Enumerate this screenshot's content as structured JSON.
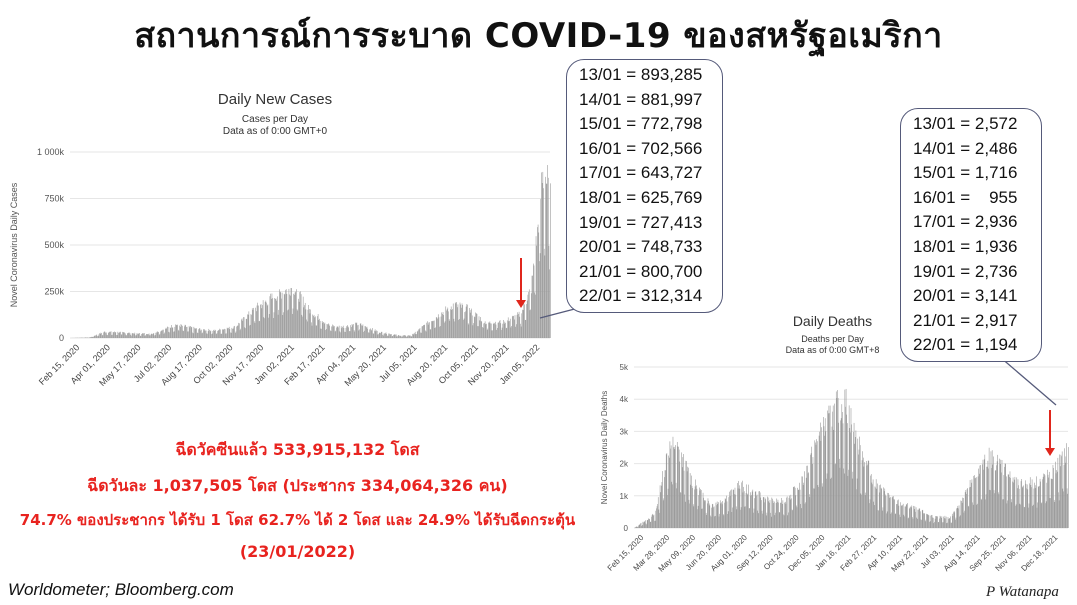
{
  "title": "สถานการณ์การระบาด COVID-19 ของสหรัฐอเมริกา",
  "colors": {
    "bar": "#9a9a9a",
    "arrow": "#e0261c",
    "stats": "#e8231f",
    "callout_border": "#555a7a"
  },
  "callout_cases": [
    "13/01 = 893,285",
    "14/01 = 881,997",
    "15/01 = 772,798",
    "16/01 = 702,566",
    "17/01 = 643,727",
    "18/01 = 625,769",
    "19/01 = 727,413",
    "20/01 = 748,733",
    "21/01 = 800,700",
    "22/01 = 312,314"
  ],
  "callout_deaths": [
    "13/01 = 2,572",
    "14/01 = 2,486",
    "15/01 = 1,716",
    "16/01 =    955",
    "17/01 = 2,936",
    "18/01 = 1,936",
    "19/01 = 2,736",
    "20/01 = 3,141",
    "21/01 = 2,917",
    "22/01 = 1,194"
  ],
  "stats": {
    "line1": "ฉีดวัคซีนแล้ว 533,915,132 โดส",
    "line2": "ฉีดวันละ 1,037,505 โดส (ประชากร 334,064,326 คน)",
    "line3": "74.7% ของประชากร ได้รับ 1 โดส 62.7% ได้ 2 โดส และ 24.9% ได้รับฉีดกระตุ้น",
    "line4": "(23/01/2022)"
  },
  "source": "Worldometer;  Bloomberg.com",
  "signature": "P Watanapa",
  "chart_data": [
    {
      "type": "bar",
      "title": "Daily New Cases",
      "subtitle": [
        "Cases per Day",
        "Data as of 0:00 GMT+0"
      ],
      "ylabel": "Novel Coronavirus Daily Cases",
      "ylim": [
        0,
        1000000
      ],
      "yticks": [
        0,
        250000,
        500000,
        750000,
        1000000
      ],
      "ytick_labels": [
        "0",
        "250k",
        "500k",
        "750k",
        "1 000k"
      ],
      "x_tick_labels": [
        "Feb 15, 2020",
        "Apr 01, 2020",
        "May 17, 2020",
        "Jul 02, 2020",
        "Aug 17, 2020",
        "Oct 02, 2020",
        "Nov 17, 2020",
        "Jan 02, 2021",
        "Feb 17, 2021",
        "Apr 04, 2021",
        "May 20, 2021",
        "Jul 05, 2021",
        "Aug 20, 2021",
        "Oct 05, 2021",
        "Nov 20, 2021",
        "Jan 05, 2022"
      ],
      "x_range": [
        "2020-02-15",
        "2022-01-22"
      ],
      "trend": [
        [
          "2020-02-15",
          0
        ],
        [
          "2020-03-15",
          3000
        ],
        [
          "2020-04-05",
          30000
        ],
        [
          "2020-04-25",
          29000
        ],
        [
          "2020-05-25",
          22000
        ],
        [
          "2020-06-15",
          22000
        ],
        [
          "2020-07-20",
          67000
        ],
        [
          "2020-08-20",
          45000
        ],
        [
          "2020-09-15",
          37000
        ],
        [
          "2020-10-15",
          55000
        ],
        [
          "2020-11-15",
          150000
        ],
        [
          "2020-12-15",
          215000
        ],
        [
          "2021-01-08",
          255000
        ],
        [
          "2021-02-01",
          140000
        ],
        [
          "2021-03-01",
          65000
        ],
        [
          "2021-03-20",
          55000
        ],
        [
          "2021-04-15",
          70000
        ],
        [
          "2021-05-15",
          30000
        ],
        [
          "2021-06-15",
          12000
        ],
        [
          "2021-07-01",
          13000
        ],
        [
          "2021-08-01",
          90000
        ],
        [
          "2021-09-01",
          165000
        ],
        [
          "2021-09-20",
          150000
        ],
        [
          "2021-10-20",
          75000
        ],
        [
          "2021-11-15",
          82000
        ],
        [
          "2021-12-10",
          120000
        ],
        [
          "2021-12-25",
          250000
        ],
        [
          "2022-01-03",
          520000
        ],
        [
          "2022-01-10",
          790000
        ],
        [
          "2022-01-14",
          820000
        ],
        [
          "2022-01-22",
          700000
        ]
      ],
      "annotation": "arrow"
    },
    {
      "type": "bar",
      "title": "Daily Deaths",
      "subtitle": [
        "Deaths per Day",
        "Data as of 0:00 GMT+8"
      ],
      "ylabel": "Novel Coronavirus Daily Deaths",
      "ylim": [
        0,
        5000
      ],
      "yticks": [
        0,
        1000,
        2000,
        3000,
        4000,
        5000
      ],
      "ytick_labels": [
        "0",
        "1k",
        "2k",
        "3k",
        "4k",
        "5k"
      ],
      "x_tick_labels": [
        "Feb 15, 2020",
        "Mar 28, 2020",
        "May 09, 2020",
        "Jun 20, 2020",
        "Aug 01, 2020",
        "Sep 12, 2020",
        "Oct 24, 2020",
        "Dec 05, 2020",
        "Jan 16, 2021",
        "Feb 27, 2021",
        "Apr 10, 2021",
        "May 22, 2021",
        "Jul 03, 2021",
        "Aug 14, 2021",
        "Sep 25, 2021",
        "Nov 06, 2021",
        "Dec 18, 2021"
      ],
      "x_range": [
        "2020-02-15",
        "2022-01-22"
      ],
      "trend": [
        [
          "2020-02-15",
          0
        ],
        [
          "2020-03-20",
          400
        ],
        [
          "2020-04-10",
          2200
        ],
        [
          "2020-04-20",
          2400
        ],
        [
          "2020-05-20",
          1300
        ],
        [
          "2020-06-20",
          650
        ],
        [
          "2020-07-10",
          800
        ],
        [
          "2020-08-05",
          1200
        ],
        [
          "2020-09-01",
          950
        ],
        [
          "2020-09-25",
          750
        ],
        [
          "2020-10-20",
          800
        ],
        [
          "2020-11-15",
          1300
        ],
        [
          "2020-12-10",
          2500
        ],
        [
          "2021-01-10",
          3400
        ],
        [
          "2021-01-25",
          3500
        ],
        [
          "2021-02-15",
          2300
        ],
        [
          "2021-03-15",
          1200
        ],
        [
          "2021-04-15",
          750
        ],
        [
          "2021-05-15",
          550
        ],
        [
          "2021-06-20",
          300
        ],
        [
          "2021-07-15",
          300
        ],
        [
          "2021-08-15",
          1200
        ],
        [
          "2021-09-15",
          2000
        ],
        [
          "2021-10-05",
          1800
        ],
        [
          "2021-11-01",
          1200
        ],
        [
          "2021-12-01",
          1300
        ],
        [
          "2021-12-25",
          1500
        ],
        [
          "2022-01-22",
          2200
        ]
      ],
      "annotation": "arrow"
    }
  ]
}
